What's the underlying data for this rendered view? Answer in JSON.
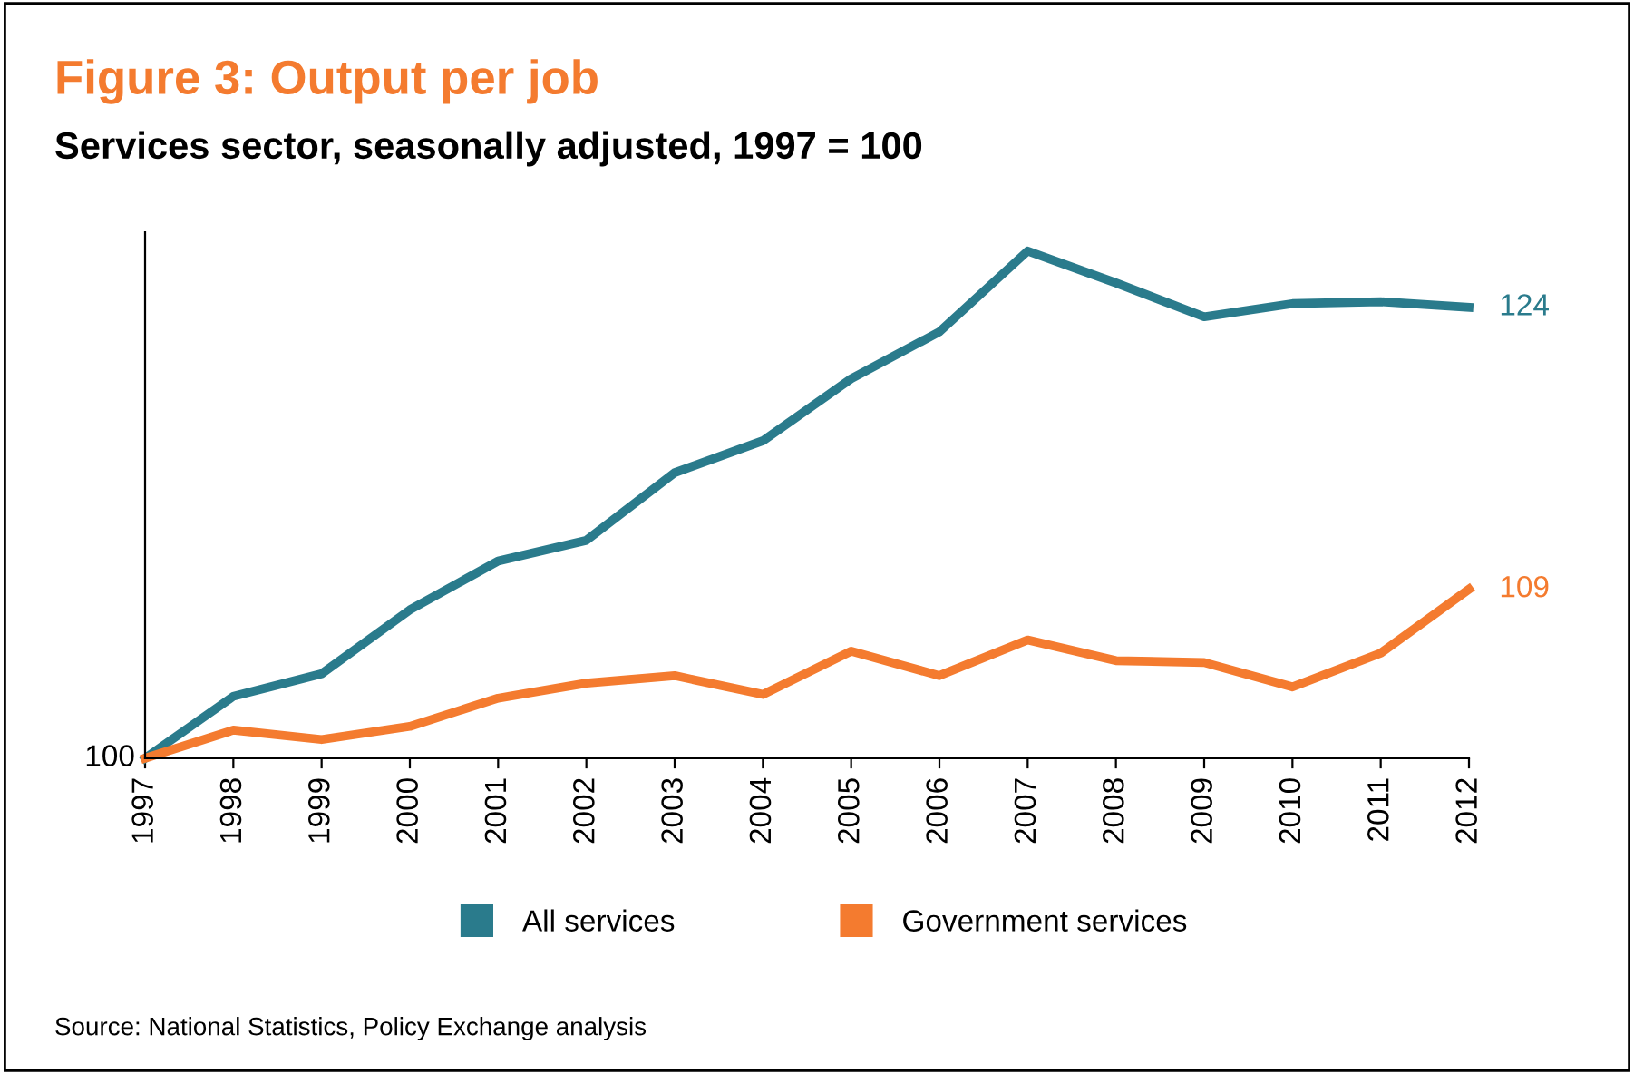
{
  "chart_data": {
    "type": "line",
    "title": "Figure 3: Output per job",
    "subtitle": "Services sector, seasonally adjusted, 1997 = 100",
    "categories": [
      "1997",
      "1998",
      "1999",
      "2000",
      "2001",
      "2002",
      "2003",
      "2004",
      "2005",
      "2006",
      "2007",
      "2008",
      "2009",
      "2010",
      "2011",
      "2012"
    ],
    "series": [
      {
        "name": "All services",
        "color": "#2a7b8c",
        "values": [
          100,
          103.3,
          104.5,
          107.9,
          110.5,
          111.6,
          115.2,
          116.9,
          120.2,
          122.7,
          127.0,
          125.3,
          123.5,
          124.2,
          124.3,
          124
        ],
        "value_labels": [
          null,
          null,
          null,
          null,
          null,
          null,
          null,
          null,
          null,
          null,
          null,
          null,
          null,
          null,
          null,
          "124"
        ]
      },
      {
        "name": "Government services",
        "color": "#f47b2f",
        "values": [
          100,
          101.5,
          101.0,
          101.7,
          103.2,
          104.0,
          104.4,
          103.4,
          105.7,
          104.4,
          106.3,
          105.2,
          105.1,
          103.8,
          105.6,
          109
        ],
        "value_labels": [
          null,
          null,
          null,
          null,
          null,
          null,
          null,
          null,
          null,
          null,
          null,
          null,
          null,
          null,
          null,
          "109"
        ]
      }
    ],
    "ylim": [
      100,
      128
    ],
    "grid": false,
    "legend": "bottom",
    "marker": "none",
    "line_style": "solid",
    "annotations": [
      {
        "text": "100",
        "x": "1997",
        "y": 100
      },
      "Source: National Statistics, Policy Exchange analysis"
    ]
  }
}
